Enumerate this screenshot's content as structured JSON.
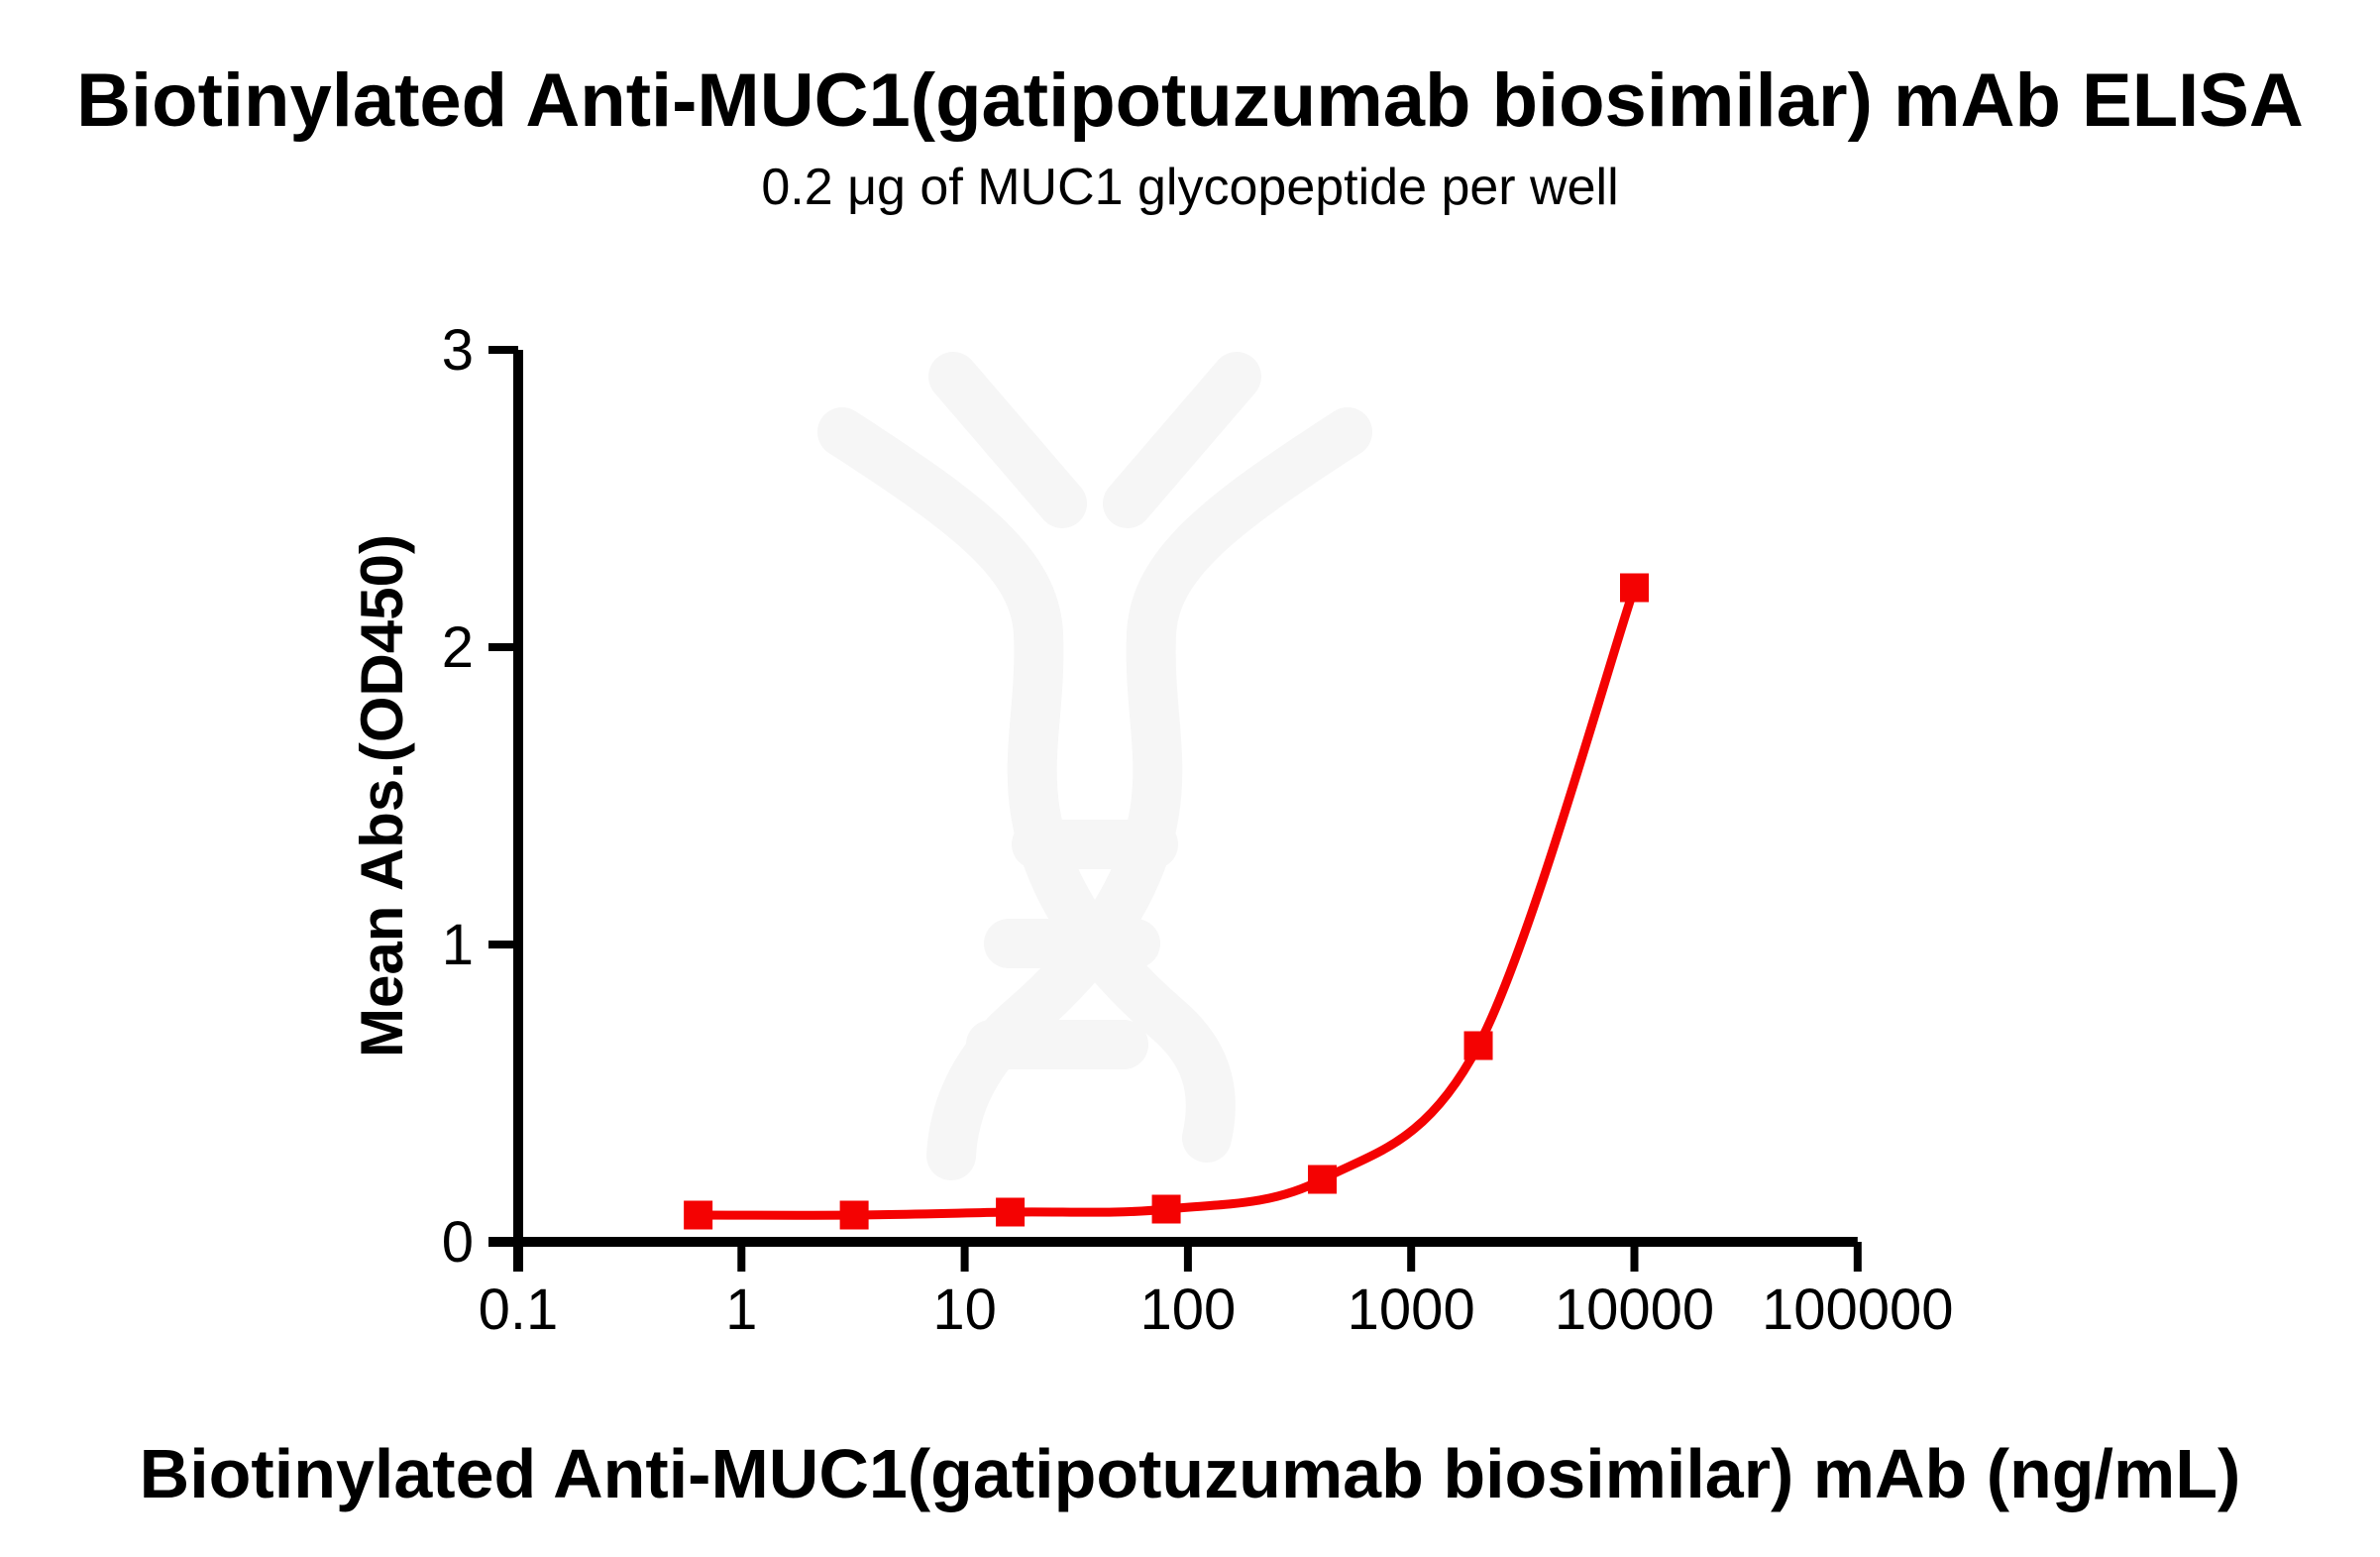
{
  "page": {
    "title": "Biotinylated Anti-MUC1(gatipotuzumab biosimilar) mAb ELISA",
    "subtitle": "0.2 μg of MUC1 glycopeptide per well",
    "x_axis_label": "Biotinylated Anti-MUC1(gatipotuzumab biosimilar) mAb (ng/mL)",
    "y_axis_label": "Mean Abs.(OD450)"
  },
  "chart_data": {
    "type": "line",
    "title": "Biotinylated Anti-MUC1(gatipotuzumab biosimilar) mAb ELISA",
    "subtitle": "0.2 μg of MUC1 glycopeptide per well",
    "xlabel": "Biotinylated Anti-MUC1(gatipotuzumab biosimilar) mAb (ng/mL)",
    "ylabel": "Mean Abs.(OD450)",
    "x_scale": "log10",
    "xlim": [
      0.1,
      100000
    ],
    "ylim": [
      0,
      3
    ],
    "x_tick_labels": [
      "0.1",
      "1",
      "10",
      "100",
      "1000",
      "10000",
      "100000"
    ],
    "y_tick_labels": [
      "0",
      "1",
      "2",
      "3"
    ],
    "x": [
      0.64,
      3.2,
      16,
      80,
      400,
      2000,
      10000
    ],
    "y": [
      0.09,
      0.09,
      0.1,
      0.11,
      0.21,
      0.66,
      2.2
    ],
    "marker": "filled-square",
    "marker_color": "#F40202",
    "line_color": "#F40202",
    "axis_color": "#000000",
    "watermark_color": "#F6F6F6",
    "grid": false,
    "legend_position": "none"
  }
}
